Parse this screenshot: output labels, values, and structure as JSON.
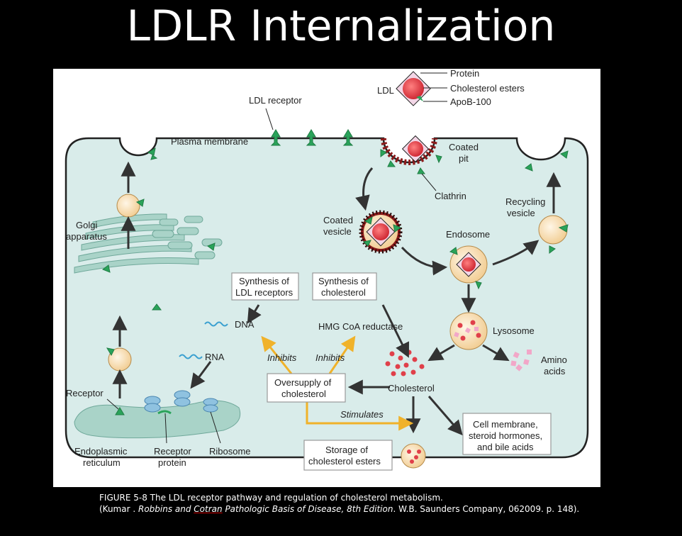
{
  "slide": {
    "title": "LDLR Internalization"
  },
  "figure": {
    "labels": {
      "ldl": "LDL",
      "protein": "Protein",
      "cholesterol_esters": "Cholesterol esters",
      "apob": "ApoB-100",
      "ldl_receptor": "LDL receptor",
      "plasma_membrane": "Plasma membrane",
      "coated_pit_1": "Coated",
      "coated_pit_2": "pit",
      "clathrin": "Clathrin",
      "recycling_1": "Recycling",
      "recycling_2": "vesicle",
      "coated_vesicle_1": "Coated",
      "coated_vesicle_2": "vesicle",
      "endosome": "Endosome",
      "golgi_1": "Golgi",
      "golgi_2": "apparatus",
      "lysosome": "Lysosome",
      "amino_1": "Amino",
      "amino_2": "acids",
      "synth_ldlr_1": "Synthesis of",
      "synth_ldlr_2": "LDL receptors",
      "synth_chol_1": "Synthesis of",
      "synth_chol_2": "cholesterol",
      "dna": "DNA",
      "rna": "RNA",
      "hmg": "HMG CoA reductase",
      "inhibits_1": "Inhibits",
      "inhibits_2": "Inhibits",
      "oversupply_1": "Oversupply of",
      "oversupply_2": "cholesterol",
      "cholesterol": "Cholesterol",
      "stimulates": "Stimulates",
      "receptor": "Receptor",
      "er_1": "Endoplasmic",
      "er_2": "reticulum",
      "receptor_protein_1": "Receptor",
      "receptor_protein_2": "protein",
      "ribosome": "Ribosome",
      "storage_1": "Storage of",
      "storage_2": "cholesterol esters",
      "cellmem_1": "Cell membrane,",
      "cellmem_2": "steroid hormones,",
      "cellmem_3": "and bile acids"
    },
    "colors": {
      "cytoplasm": "#d9ecea",
      "membrane_stroke": "#222222",
      "receptor": "#2aa35a",
      "ldl_particle": "#e0404a",
      "organelle": "#a9d3c8",
      "vesicle": "#f6d9a8",
      "arrow": "#333333",
      "regulation_arrow": "#f0b22a"
    }
  },
  "caption": {
    "line1": "FIGURE 5-8 The LDL receptor pathway and regulation of cholesterol metabolism.",
    "line2_prefix": "(Kumar . ",
    "line2_book_a": "Robbins and ",
    "line2_book_b": "Cotran",
    "line2_book_c": " Pathologic Basis of Disease, 8th Edition",
    "line2_suffix": ". W.B. Saunders Company, 062009. p. 148)."
  }
}
